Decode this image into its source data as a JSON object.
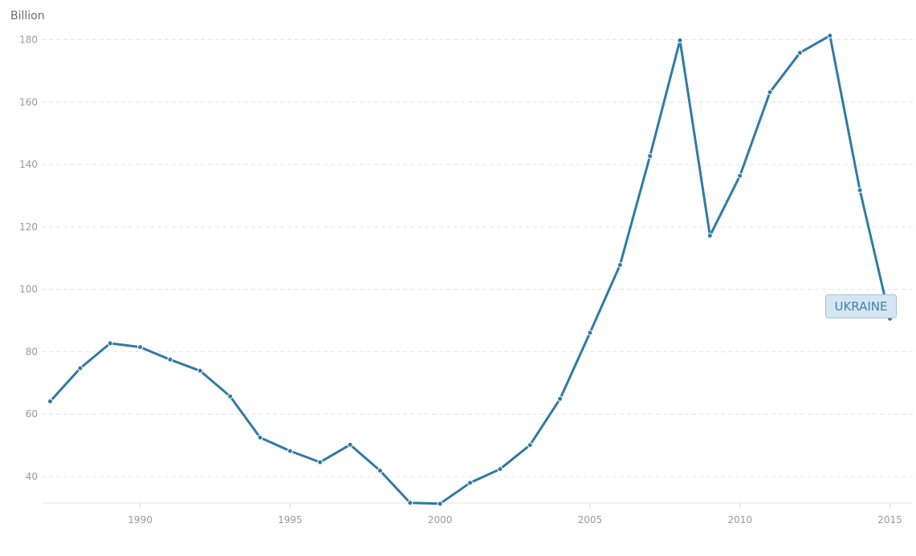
{
  "chart_data": {
    "type": "line",
    "unit_label": "Billion",
    "x": [
      1987,
      1988,
      1989,
      1990,
      1991,
      1992,
      1993,
      1994,
      1995,
      1996,
      1997,
      1998,
      1999,
      2000,
      2001,
      2002,
      2003,
      2004,
      2005,
      2006,
      2007,
      2008,
      2009,
      2010,
      2011,
      2012,
      2013,
      2014,
      2015
    ],
    "series": [
      {
        "name": "UKRAINE",
        "values": [
          64.1,
          74.7,
          82.7,
          81.5,
          77.5,
          73.9,
          65.7,
          52.5,
          48.2,
          44.6,
          50.2,
          41.9,
          31.6,
          31.3,
          38.0,
          42.4,
          50.1,
          64.9,
          86.1,
          107.8,
          142.7,
          179.8,
          117.2,
          136.4,
          163.2,
          175.8,
          181.3,
          131.8,
          90.6
        ],
        "color": "#2f7aa6",
        "label_bg": "#d5e6f2",
        "label_color": "#3f7fae"
      }
    ],
    "y_ticks": [
      40,
      60,
      80,
      100,
      120,
      140,
      160,
      180
    ],
    "x_ticks": [
      1990,
      1995,
      2000,
      2005,
      2010,
      2015
    ],
    "xlim": [
      1987,
      2015.4
    ],
    "ylim": [
      30,
      185
    ],
    "grid": true,
    "grid_axis": "y"
  }
}
